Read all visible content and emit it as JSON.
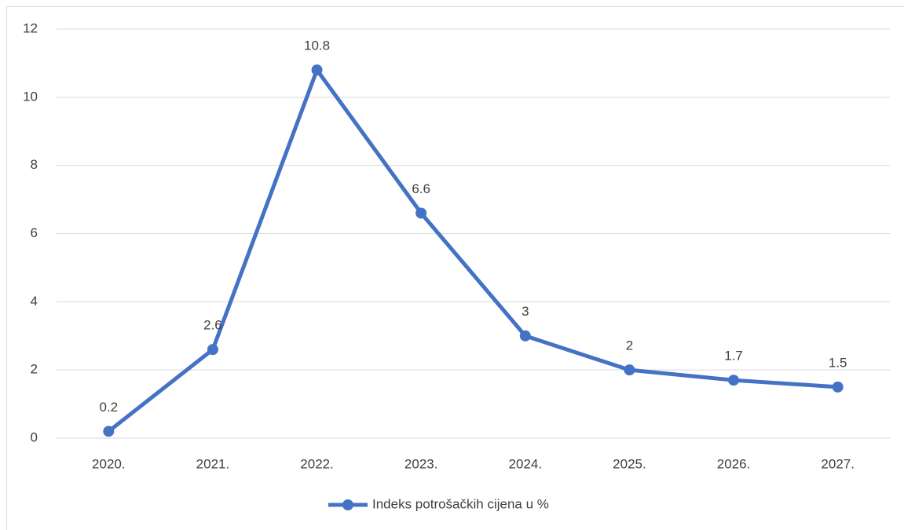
{
  "chart_data": {
    "type": "line",
    "categories": [
      "2020.",
      "2021.",
      "2022.",
      "2023.",
      "2024.",
      "2025.",
      "2026.",
      "2027."
    ],
    "series": [
      {
        "name": "Indeks potrošačkih cijena u %",
        "color": "#4472c4",
        "values": [
          0.2,
          2.6,
          10.8,
          6.6,
          3,
          2,
          1.7,
          1.5
        ]
      }
    ],
    "ylim": [
      0,
      12
    ],
    "yticks": [
      0,
      2,
      4,
      6,
      8,
      10,
      12
    ],
    "grid": true,
    "legend": "bottom"
  }
}
